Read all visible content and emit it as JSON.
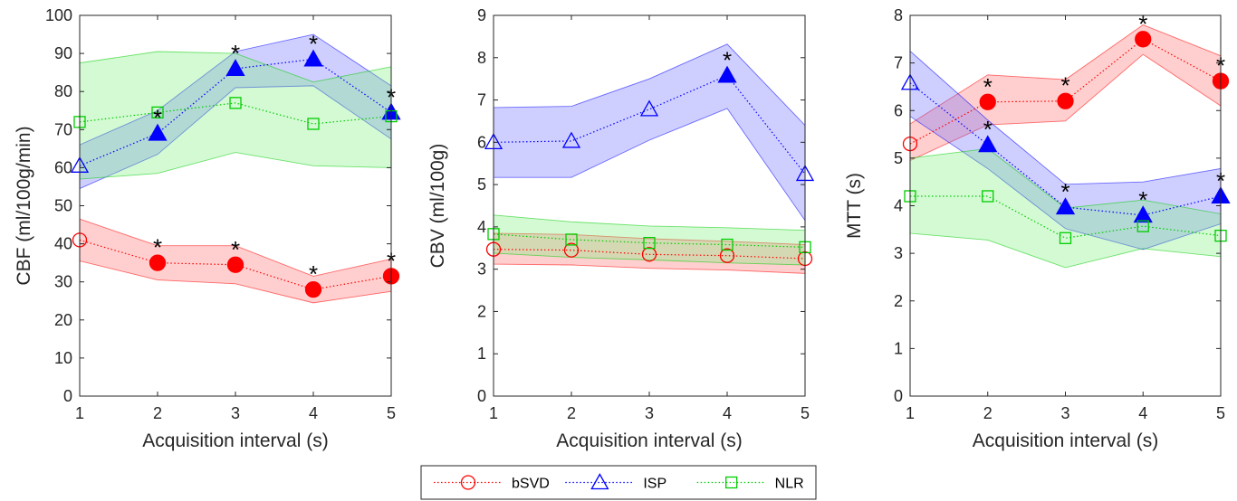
{
  "legend": {
    "entries": [
      {
        "label": "bSVD",
        "series": "bSVD"
      },
      {
        "label": "ISP",
        "series": "ISP"
      },
      {
        "label": "NLR",
        "series": "NLR"
      }
    ]
  },
  "series_styles": {
    "bSVD": {
      "color": "#ff0000",
      "band": "#ff6b6b",
      "marker": "circle"
    },
    "ISP": {
      "color": "#0000ff",
      "band": "#6b6bff",
      "marker": "triangle"
    },
    "NLR": {
      "color": "#00cc00",
      "band": "#7af07a",
      "marker": "square"
    }
  },
  "chart_data": [
    {
      "type": "line",
      "xlabel": "Acquisition interval  (s)",
      "ylabel": "CBF (ml/100g/min)",
      "x": [
        1,
        2,
        3,
        4,
        5
      ],
      "xticks": [
        "1",
        "2",
        "3",
        "4",
        "5"
      ],
      "xlim": [
        1,
        5
      ],
      "ylim": [
        0,
        100
      ],
      "yticks": [
        "0",
        "10",
        "20",
        "30",
        "40",
        "50",
        "60",
        "70",
        "80",
        "90",
        "100"
      ],
      "grid": false,
      "legend_position": "bottom-center",
      "series": [
        {
          "name": "bSVD",
          "values": [
            41,
            35,
            34.5,
            28,
            31.5
          ],
          "lower": [
            35.5,
            30.5,
            29.5,
            24.5,
            27.5
          ],
          "upper": [
            46.5,
            39.5,
            39.5,
            31.5,
            36
          ],
          "significant": [
            false,
            true,
            true,
            true,
            true
          ]
        },
        {
          "name": "ISP",
          "values": [
            60.5,
            69,
            86,
            88.5,
            74.5
          ],
          "lower": [
            54.5,
            63.5,
            81,
            81.5,
            67.5
          ],
          "upper": [
            66,
            75,
            90.5,
            95,
            81.5
          ],
          "significant": [
            false,
            true,
            true,
            true,
            true
          ]
        },
        {
          "name": "NLR",
          "values": [
            72,
            74.5,
            77,
            71.5,
            73.5
          ],
          "lower": [
            57,
            58.5,
            64,
            60.5,
            60
          ],
          "upper": [
            87.5,
            90.5,
            90,
            82.5,
            86.5
          ],
          "significant": [
            false,
            false,
            false,
            false,
            false
          ]
        }
      ]
    },
    {
      "type": "line",
      "xlabel": "Acquisition interval  (s)",
      "ylabel": "CBV (ml/100g)",
      "x": [
        1,
        2,
        3,
        4,
        5
      ],
      "xticks": [
        "1",
        "2",
        "3",
        "4",
        "5"
      ],
      "xlim": [
        1,
        5
      ],
      "ylim": [
        0,
        9
      ],
      "yticks": [
        "0",
        "1",
        "2",
        "3",
        "4",
        "5",
        "6",
        "7",
        "8",
        "9"
      ],
      "grid": false,
      "series": [
        {
          "name": "bSVD",
          "values": [
            3.47,
            3.45,
            3.35,
            3.32,
            3.25
          ],
          "lower": [
            3.12,
            3.1,
            3.02,
            2.98,
            2.9
          ],
          "upper": [
            3.85,
            3.82,
            3.72,
            3.66,
            3.58
          ],
          "significant": [
            false,
            false,
            false,
            false,
            false
          ]
        },
        {
          "name": "ISP",
          "values": [
            6.0,
            6.03,
            6.78,
            7.58,
            5.25
          ],
          "lower": [
            5.17,
            5.17,
            6.05,
            6.8,
            4.15
          ],
          "upper": [
            6.82,
            6.85,
            7.5,
            8.32,
            6.4
          ],
          "significant": [
            false,
            false,
            false,
            true,
            false
          ]
        },
        {
          "name": "NLR",
          "values": [
            3.83,
            3.7,
            3.62,
            3.58,
            3.52
          ],
          "lower": [
            3.38,
            3.28,
            3.22,
            3.15,
            3.1
          ],
          "upper": [
            4.28,
            4.12,
            4.02,
            3.98,
            3.92
          ],
          "significant": [
            false,
            false,
            false,
            false,
            false
          ]
        }
      ]
    },
    {
      "type": "line",
      "xlabel": "Acquisition interval  (s)",
      "ylabel": "MTT (s)",
      "x": [
        1,
        2,
        3,
        4,
        5
      ],
      "xticks": [
        "1",
        "2",
        "3",
        "4",
        "5"
      ],
      "xlim": [
        1,
        5
      ],
      "ylim": [
        0,
        8
      ],
      "yticks": [
        "0",
        "1",
        "2",
        "3",
        "4",
        "5",
        "6",
        "7",
        "8"
      ],
      "grid": false,
      "series": [
        {
          "name": "bSVD",
          "values": [
            5.3,
            6.18,
            6.2,
            7.5,
            6.62
          ],
          "lower": [
            4.95,
            5.7,
            5.78,
            7.18,
            6.1
          ],
          "upper": [
            5.72,
            6.75,
            6.65,
            7.8,
            7.15
          ],
          "significant": [
            false,
            true,
            true,
            true,
            true
          ]
        },
        {
          "name": "ISP",
          "values": [
            6.58,
            5.28,
            3.97,
            3.8,
            4.2
          ],
          "lower": [
            5.88,
            4.78,
            3.52,
            3.08,
            3.62
          ],
          "upper": [
            7.25,
            5.8,
            4.45,
            4.5,
            4.78
          ],
          "significant": [
            false,
            true,
            true,
            true,
            true
          ]
        },
        {
          "name": "NLR",
          "values": [
            4.2,
            4.2,
            3.32,
            3.57,
            3.37
          ],
          "lower": [
            3.42,
            3.28,
            2.7,
            3.1,
            2.93
          ],
          "upper": [
            5.0,
            5.2,
            3.95,
            4.12,
            3.83
          ],
          "significant": [
            false,
            false,
            false,
            false,
            false
          ]
        }
      ]
    }
  ]
}
